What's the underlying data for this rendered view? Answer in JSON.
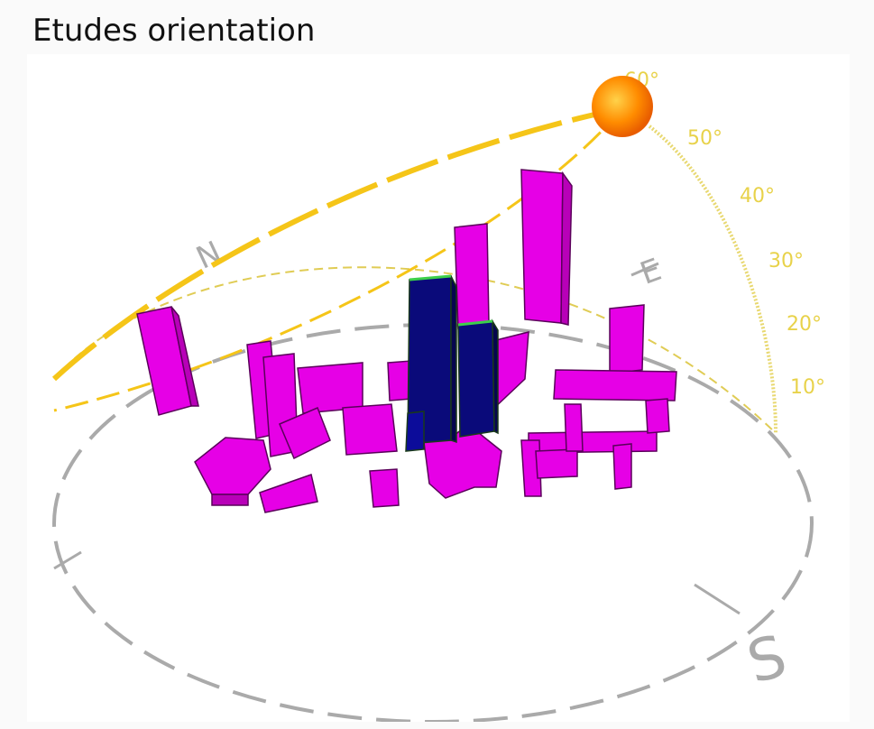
{
  "title": "Etudes orientation",
  "compass": {
    "north": "N",
    "east": "E",
    "south": "S"
  },
  "elevation_marks": [
    "60°",
    "50°",
    "40°",
    "30°",
    "20°",
    "10°"
  ],
  "colors": {
    "sun_path": "#f5c518",
    "sun_core": "#ff8a00",
    "neighbor_buildings": "#e600e6",
    "study_building": "#0a0a7a",
    "ground_circle": "#aaaaaa"
  }
}
